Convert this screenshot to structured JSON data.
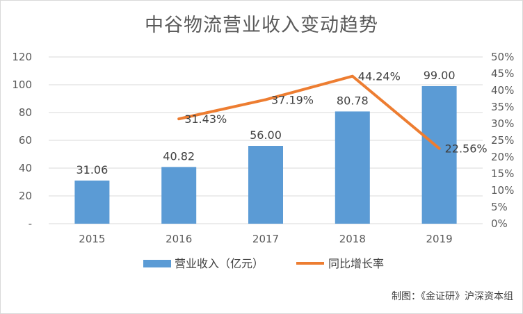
{
  "chart_data": {
    "type": "bar+line",
    "title": "中谷物流营业收入变动趋势",
    "categories": [
      "2015",
      "2016",
      "2017",
      "2018",
      "2019"
    ],
    "series": [
      {
        "name": "营业收入（亿元）",
        "type": "bar",
        "axis": "left",
        "values": [
          31.06,
          40.82,
          56.0,
          80.78,
          99.0
        ],
        "labels": [
          "31.06",
          "40.82",
          "56.00",
          "80.78",
          "99.00"
        ],
        "color": "#5b9bd5"
      },
      {
        "name": "同比增长率",
        "type": "line",
        "axis": "right",
        "values": [
          null,
          31.43,
          37.19,
          44.24,
          22.56
        ],
        "labels": [
          "",
          "31.43%",
          "37.19%",
          "44.24%",
          "22.56%"
        ],
        "color": "#ed7d31"
      }
    ],
    "y_left": {
      "ylim": [
        0,
        120
      ],
      "ticks": [
        0,
        20,
        40,
        60,
        80,
        100,
        120
      ],
      "tick_labels": [
        "-",
        "20",
        "40",
        "60",
        "80",
        "100",
        "120"
      ]
    },
    "y_right": {
      "ylim": [
        0,
        50
      ],
      "ticks": [
        0,
        5,
        10,
        15,
        20,
        25,
        30,
        35,
        40,
        45,
        50
      ],
      "tick_labels": [
        "0%",
        "5%",
        "10%",
        "15%",
        "20%",
        "25%",
        "30%",
        "35%",
        "40%",
        "45%",
        "50%"
      ]
    },
    "grid": true,
    "legend_position": "bottom"
  },
  "source_note": "制图：《金证研》沪深资本组"
}
